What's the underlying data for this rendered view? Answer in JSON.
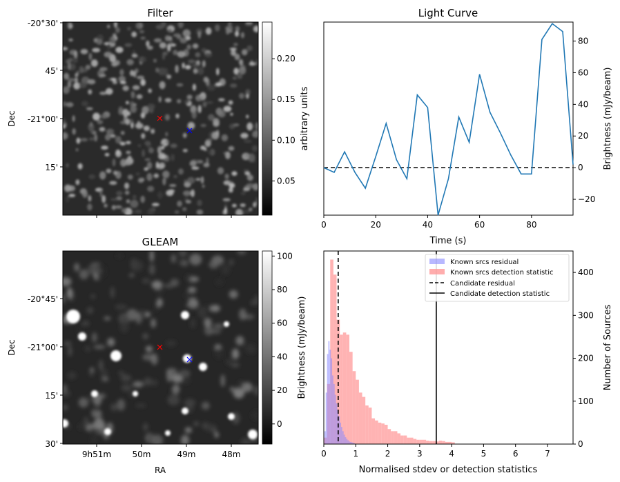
{
  "chart_data": [
    {
      "type": "heatmap",
      "panel": "filter",
      "title": "Filter",
      "ylabel": "Dec",
      "dec_tick_labels": [
        "-20°30'",
        "45'",
        "-21°00'",
        "15'"
      ],
      "colorbar": {
        "label": "arbitrary units",
        "range": [
          0.008,
          0.245
        ],
        "ticks": [
          0.05,
          0.1,
          0.15,
          0.2
        ],
        "tick_labels": [
          "0.05",
          "0.10",
          "0.15",
          "0.20"
        ]
      },
      "colors": {
        "marker_target": "#ff0000",
        "marker_comparison": "#0000ff"
      },
      "markers": [
        {
          "name": "target",
          "symbol": "x",
          "color": "red"
        },
        {
          "name": "comparison",
          "symbol": "x",
          "color": "blue"
        }
      ]
    },
    {
      "type": "line",
      "panel": "light-curve",
      "title": "Light Curve",
      "xlabel": "Time (s)",
      "ylabel": "Brightness (mJy/beam)",
      "xlim": [
        0,
        96
      ],
      "ylim": [
        -30,
        92
      ],
      "xticks": [
        0,
        20,
        40,
        60,
        80
      ],
      "yticks": [
        -20,
        0,
        20,
        40,
        60,
        80
      ],
      "x": [
        0,
        4,
        8,
        12,
        16,
        20,
        24,
        28,
        32,
        36,
        40,
        44,
        48,
        52,
        56,
        60,
        64,
        68,
        72,
        76,
        80,
        84,
        88,
        92,
        96
      ],
      "y": [
        0,
        -3,
        10,
        -3,
        -13,
        7,
        28,
        5,
        -7,
        46,
        38,
        -30,
        -7,
        32,
        16,
        59,
        35,
        22,
        8,
        -4,
        -4,
        81,
        91,
        86,
        2
      ],
      "reference_line": {
        "y": 0,
        "style": "dashed"
      },
      "colors": {
        "line": "#1f77b4"
      }
    },
    {
      "type": "heatmap",
      "panel": "gleam",
      "title": "GLEAM",
      "xlabel": "RA",
      "ylabel": "Dec",
      "dec_tick_labels": [
        "-20°45'",
        "-21°00'",
        "15'",
        "30'"
      ],
      "ra_tick_labels": [
        "9h51m",
        "50m",
        "49m",
        "48m"
      ],
      "colorbar": {
        "label": "Brightness (mJy/beam)",
        "range": [
          -12,
          103
        ],
        "ticks": [
          0,
          20,
          40,
          60,
          80,
          100
        ],
        "tick_labels": [
          "0",
          "20",
          "40",
          "60",
          "80",
          "100"
        ]
      },
      "markers": [
        {
          "name": "target",
          "symbol": "x",
          "color": "red"
        },
        {
          "name": "comparison",
          "symbol": "x",
          "color": "blue"
        }
      ]
    },
    {
      "type": "bar",
      "panel": "histogram",
      "xlabel": "Normalised stdev or detection statistics",
      "ylabel": "Number of Sources",
      "xlim": [
        0,
        7.8
      ],
      "ylim": [
        0,
        450
      ],
      "xticks": [
        0,
        1,
        2,
        3,
        4,
        5,
        6,
        7
      ],
      "yticks": [
        0,
        100,
        200,
        300,
        400
      ],
      "legend": {
        "placement": "top-right",
        "entries": [
          "Known srcs residual",
          "Known srcs detection statistic",
          "Candidate residual",
          "Candidate detection statistic"
        ]
      },
      "series": [
        {
          "name": "Known srcs detection statistic",
          "color": "#ff9999",
          "bin_width": 0.1,
          "bin_starts": [
            0.0,
            0.1,
            0.2,
            0.3,
            0.4,
            0.5,
            0.6,
            0.7,
            0.8,
            0.9,
            1.0,
            1.1,
            1.2,
            1.3,
            1.4,
            1.5,
            1.6,
            1.7,
            1.8,
            1.9,
            2.0,
            2.1,
            2.2,
            2.3,
            2.4,
            2.5,
            2.6,
            2.7,
            2.8,
            2.9,
            3.0,
            3.1,
            3.2,
            3.3,
            3.4,
            3.5,
            3.6,
            3.7,
            3.8,
            3.9,
            4.0
          ],
          "values": [
            15,
            140,
            430,
            395,
            290,
            255,
            260,
            255,
            215,
            170,
            150,
            120,
            110,
            90,
            85,
            60,
            55,
            50,
            48,
            45,
            35,
            30,
            30,
            25,
            20,
            20,
            15,
            15,
            12,
            10,
            10,
            10,
            8,
            7,
            7,
            6,
            8,
            7,
            5,
            5,
            4
          ]
        },
        {
          "name": "Known srcs residual",
          "color": "#8888ff",
          "bin_width": 0.04,
          "bin_starts": [
            0.02,
            0.06,
            0.1,
            0.14,
            0.18,
            0.22,
            0.26,
            0.3,
            0.34,
            0.38,
            0.42,
            0.46,
            0.5,
            0.54,
            0.58,
            0.62,
            0.66,
            0.7,
            0.74,
            0.78,
            0.82,
            0.86,
            0.9,
            0.94
          ],
          "values": [
            30,
            120,
            210,
            240,
            220,
            200,
            160,
            140,
            115,
            95,
            80,
            65,
            50,
            40,
            30,
            22,
            16,
            12,
            9,
            6,
            5,
            4,
            3,
            2
          ]
        }
      ],
      "vlines": [
        {
          "name": "Candidate residual",
          "x": 0.45,
          "style": "dashed"
        },
        {
          "name": "Candidate detection statistic",
          "x": 3.52,
          "style": "solid"
        }
      ]
    }
  ]
}
